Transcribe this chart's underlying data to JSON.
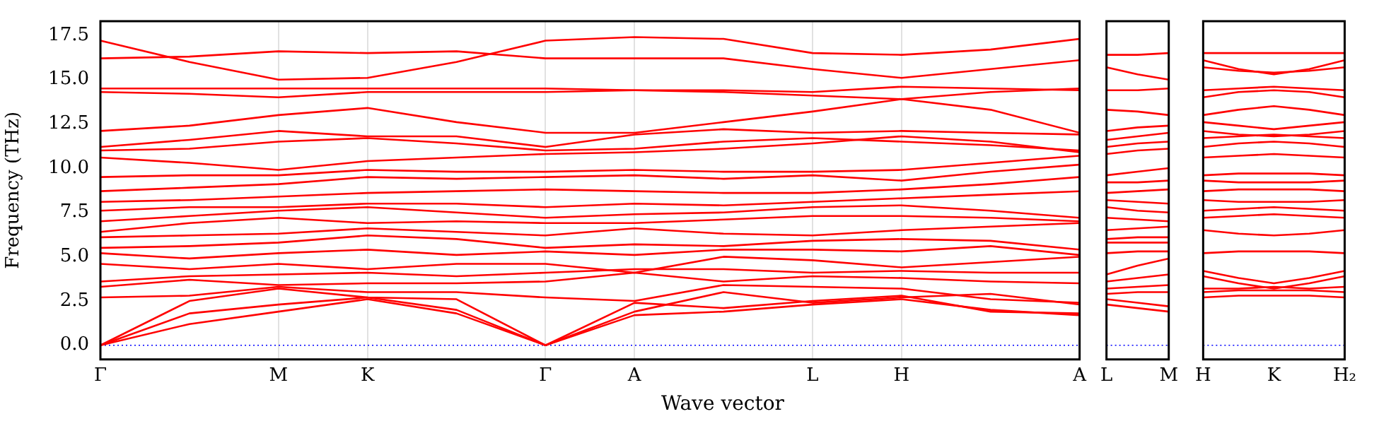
{
  "chart_data": [
    {
      "type": "line",
      "xlabel": "Wave vector",
      "ylabel": "Frequency (THz)",
      "grid": "x",
      "legend": false,
      "marker": "none",
      "line_style": "solid",
      "categories": [
        "Γ",
        null,
        "M",
        "K",
        null,
        "Γ",
        "A",
        null,
        "L",
        "H",
        null,
        "A"
      ],
      "ylim": [
        -0.8,
        18.3
      ],
      "yticks": [
        {
          "value": 0,
          "label": "0.0"
        },
        2.5,
        {
          "value": 5,
          "label": "5.0"
        },
        7.5,
        {
          "value": 10,
          "label": "10.0"
        },
        12.5,
        {
          "value": 15,
          "label": "15.0"
        },
        17.5
      ],
      "ref_lines": [
        {
          "axis": "y",
          "value": 0,
          "color": "#0000ff",
          "line_style": "dotted"
        }
      ],
      "series": [
        {
          "color": "#ff0000",
          "values": [
            0,
            1.2,
            1.9,
            2.6,
            1.8,
            0,
            1.7,
            1.9,
            2.3,
            2.6,
            2.0,
            1.7
          ]
        },
        {
          "color": "#ff0000",
          "values": [
            0,
            1.8,
            2.3,
            2.7,
            2.0,
            0,
            2.4,
            2.1,
            2.5,
            2.8,
            1.9,
            1.8
          ]
        },
        {
          "color": "#ff0000",
          "values": [
            0,
            2.5,
            3.2,
            2.7,
            2.6,
            0,
            1.9,
            3.0,
            2.4,
            2.7,
            2.9,
            2.3
          ]
        },
        {
          "color": "#ff0000",
          "values": [
            2.7,
            2.8,
            3.3,
            3.0,
            3.0,
            2.7,
            2.5,
            3.4,
            3.3,
            3.2,
            2.6,
            2.4
          ]
        },
        {
          "color": "#ff0000",
          "values": [
            3.3,
            3.7,
            3.4,
            3.5,
            3.5,
            3.6,
            4.1,
            3.6,
            3.9,
            3.8,
            3.6,
            3.5
          ]
        },
        {
          "color": "#ff0000",
          "values": [
            3.6,
            3.9,
            4.0,
            4.1,
            3.9,
            4.1,
            4.3,
            4.3,
            4.1,
            4.2,
            4.1,
            4.1
          ]
        },
        {
          "color": "#ff0000",
          "values": [
            4.6,
            4.3,
            4.6,
            4.3,
            4.6,
            4.6,
            4.1,
            5.0,
            4.8,
            4.4,
            4.7,
            5.0
          ]
        },
        {
          "color": "#ff0000",
          "values": [
            5.2,
            4.9,
            5.2,
            5.4,
            5.1,
            5.3,
            5.1,
            5.4,
            5.4,
            5.3,
            5.6,
            5.1
          ]
        },
        {
          "color": "#ff0000",
          "values": [
            5.5,
            5.6,
            5.8,
            6.2,
            6.0,
            5.5,
            5.7,
            5.6,
            5.9,
            6.0,
            5.9,
            5.4
          ]
        },
        {
          "color": "#ff0000",
          "values": [
            6.1,
            6.2,
            6.3,
            6.6,
            6.4,
            6.2,
            6.6,
            6.3,
            6.2,
            6.5,
            6.7,
            6.9
          ]
        },
        {
          "color": "#ff0000",
          "values": [
            6.4,
            6.9,
            7.2,
            6.9,
            7.0,
            6.9,
            6.9,
            7.1,
            7.3,
            7.3,
            7.2,
            7.0
          ]
        },
        {
          "color": "#ff0000",
          "values": [
            7.0,
            7.3,
            7.6,
            7.8,
            7.5,
            7.2,
            7.4,
            7.5,
            7.8,
            7.9,
            7.6,
            7.2
          ]
        },
        {
          "color": "#ff0000",
          "values": [
            7.6,
            7.8,
            7.8,
            8.0,
            8.0,
            7.8,
            8.0,
            7.9,
            8.1,
            8.3,
            8.5,
            8.7
          ]
        },
        {
          "color": "#ff0000",
          "values": [
            8.1,
            8.2,
            8.4,
            8.6,
            8.7,
            8.8,
            8.7,
            8.6,
            8.6,
            8.8,
            9.1,
            9.5
          ]
        },
        {
          "color": "#ff0000",
          "values": [
            8.7,
            8.9,
            9.1,
            9.5,
            9.4,
            9.5,
            9.6,
            9.4,
            9.6,
            9.3,
            9.8,
            10.2
          ]
        },
        {
          "color": "#ff0000",
          "values": [
            9.5,
            9.6,
            9.6,
            9.9,
            9.8,
            9.8,
            9.9,
            9.8,
            9.8,
            9.9,
            10.3,
            10.7
          ]
        },
        {
          "color": "#ff0000",
          "values": [
            10.6,
            10.3,
            9.9,
            10.4,
            10.6,
            10.8,
            10.9,
            11.1,
            11.4,
            11.8,
            11.5,
            10.9
          ]
        },
        {
          "color": "#ff0000",
          "values": [
            11.0,
            11.1,
            11.5,
            11.7,
            11.4,
            11.0,
            11.1,
            11.5,
            11.7,
            11.5,
            11.3,
            11.0
          ]
        },
        {
          "color": "#ff0000",
          "values": [
            11.2,
            11.6,
            12.1,
            11.8,
            11.8,
            11.2,
            11.9,
            12.2,
            12.0,
            12.1,
            12.0,
            11.9
          ]
        },
        {
          "color": "#ff0000",
          "values": [
            12.1,
            12.4,
            13.0,
            13.4,
            12.6,
            12.0,
            12.0,
            12.6,
            13.2,
            13.9,
            13.3,
            12.0
          ]
        },
        {
          "color": "#ff0000",
          "values": [
            14.3,
            14.2,
            14.0,
            14.3,
            14.3,
            14.3,
            14.4,
            14.4,
            14.3,
            14.6,
            14.5,
            14.4
          ]
        },
        {
          "color": "#ff0000",
          "values": [
            14.5,
            14.5,
            14.5,
            14.5,
            14.5,
            14.5,
            14.4,
            14.3,
            14.1,
            13.9,
            14.3,
            14.5
          ]
        },
        {
          "color": "#ff0000",
          "values": [
            16.2,
            16.3,
            16.6,
            16.5,
            16.6,
            16.2,
            16.2,
            16.2,
            15.6,
            15.1,
            15.6,
            16.1
          ]
        },
        {
          "color": "#ff0000",
          "values": [
            17.2,
            16.0,
            15.0,
            15.1,
            16.0,
            17.2,
            17.4,
            17.3,
            16.5,
            16.4,
            16.7,
            17.3
          ]
        }
      ]
    },
    {
      "type": "line",
      "legend": false,
      "marker": "none",
      "line_style": "solid",
      "tick_labels": "x",
      "categories": [
        "L",
        null,
        "M"
      ],
      "ylim": [
        -0.8,
        18.3
      ],
      "yticks": [
        {
          "value": 0,
          "label": null
        },
        {
          "value": 2.5,
          "label": null
        },
        {
          "value": 5,
          "label": null
        },
        {
          "value": 7.5,
          "label": null
        },
        {
          "value": 10,
          "label": null
        },
        {
          "value": 12.5,
          "label": null
        },
        {
          "value": 15,
          "label": null
        },
        {
          "value": 17.5,
          "label": null
        }
      ],
      "ref_lines": [
        {
          "axis": "y",
          "value": 0,
          "color": "#0000ff",
          "line_style": "dotted"
        }
      ],
      "series": [
        {
          "color": "#ff0000",
          "values": [
            2.3,
            2.1,
            1.9
          ]
        },
        {
          "color": "#ff0000",
          "values": [
            2.6,
            2.4,
            2.2
          ]
        },
        {
          "color": "#ff0000",
          "values": [
            2.9,
            3.0,
            3.0
          ]
        },
        {
          "color": "#ff0000",
          "values": [
            3.2,
            3.3,
            3.4
          ]
        },
        {
          "color": "#ff0000",
          "values": [
            3.6,
            3.8,
            4.0
          ]
        },
        {
          "color": "#ff0000",
          "values": [
            4.0,
            4.5,
            4.9
          ]
        },
        {
          "color": "#ff0000",
          "values": [
            5.2,
            5.3,
            5.3
          ]
        },
        {
          "color": "#ff0000",
          "values": [
            5.8,
            5.8,
            5.8
          ]
        },
        {
          "color": "#ff0000",
          "values": [
            6.0,
            6.1,
            6.1
          ]
        },
        {
          "color": "#ff0000",
          "values": [
            6.5,
            6.6,
            6.7
          ]
        },
        {
          "color": "#ff0000",
          "values": [
            7.2,
            7.1,
            7.0
          ]
        },
        {
          "color": "#ff0000",
          "values": [
            7.8,
            7.6,
            7.5
          ]
        },
        {
          "color": "#ff0000",
          "values": [
            8.2,
            8.1,
            8.0
          ]
        },
        {
          "color": "#ff0000",
          "values": [
            8.6,
            8.7,
            8.8
          ]
        },
        {
          "color": "#ff0000",
          "values": [
            9.2,
            9.2,
            9.3
          ]
        },
        {
          "color": "#ff0000",
          "values": [
            9.6,
            9.8,
            10.0
          ]
        },
        {
          "color": "#ff0000",
          "values": [
            10.8,
            11.0,
            11.1
          ]
        },
        {
          "color": "#ff0000",
          "values": [
            11.2,
            11.4,
            11.5
          ]
        },
        {
          "color": "#ff0000",
          "values": [
            11.6,
            11.8,
            12.0
          ]
        },
        {
          "color": "#ff0000",
          "values": [
            12.1,
            12.3,
            12.4
          ]
        },
        {
          "color": "#ff0000",
          "values": [
            13.3,
            13.2,
            13.0
          ]
        },
        {
          "color": "#ff0000",
          "values": [
            14.4,
            14.4,
            14.5
          ]
        },
        {
          "color": "#ff0000",
          "values": [
            15.7,
            15.3,
            15.0
          ]
        },
        {
          "color": "#ff0000",
          "values": [
            16.4,
            16.4,
            16.5
          ]
        }
      ]
    },
    {
      "type": "line",
      "legend": false,
      "marker": "none",
      "line_style": "solid",
      "tick_labels": "x",
      "categories": [
        "H",
        null,
        "K",
        null,
        "H₂"
      ],
      "ylim": [
        -0.8,
        18.3
      ],
      "yticks": [
        {
          "value": 0,
          "label": null
        },
        {
          "value": 2.5,
          "label": null
        },
        {
          "value": 5,
          "label": null
        },
        {
          "value": 7.5,
          "label": null
        },
        {
          "value": 10,
          "label": null
        },
        {
          "value": 12.5,
          "label": null
        },
        {
          "value": 15,
          "label": null
        },
        {
          "value": 17.5,
          "label": null
        }
      ],
      "ref_lines": [
        {
          "axis": "y",
          "value": 0,
          "color": "#0000ff",
          "line_style": "dotted"
        }
      ],
      "series": [
        {
          "color": "#ff0000",
          "values": [
            2.7,
            2.8,
            2.8,
            2.8,
            2.7
          ]
        },
        {
          "color": "#ff0000",
          "values": [
            3.0,
            3.1,
            3.1,
            3.1,
            3.0
          ]
        },
        {
          "color": "#ff0000",
          "values": [
            3.2,
            3.2,
            3.3,
            3.2,
            3.3
          ]
        },
        {
          "color": "#ff0000",
          "values": [
            3.9,
            3.5,
            3.2,
            3.5,
            3.9
          ]
        },
        {
          "color": "#ff0000",
          "values": [
            4.2,
            3.8,
            3.5,
            3.8,
            4.2
          ]
        },
        {
          "color": "#ff0000",
          "values": [
            5.2,
            5.3,
            5.3,
            5.3,
            5.2
          ]
        },
        {
          "color": "#ff0000",
          "values": [
            6.5,
            6.3,
            6.2,
            6.3,
            6.5
          ]
        },
        {
          "color": "#ff0000",
          "values": [
            7.2,
            7.3,
            7.4,
            7.3,
            7.2
          ]
        },
        {
          "color": "#ff0000",
          "values": [
            7.6,
            7.7,
            7.8,
            7.7,
            7.6
          ]
        },
        {
          "color": "#ff0000",
          "values": [
            8.2,
            8.1,
            8.1,
            8.1,
            8.2
          ]
        },
        {
          "color": "#ff0000",
          "values": [
            8.7,
            8.8,
            8.8,
            8.8,
            8.7
          ]
        },
        {
          "color": "#ff0000",
          "values": [
            9.3,
            9.2,
            9.2,
            9.2,
            9.3
          ]
        },
        {
          "color": "#ff0000",
          "values": [
            9.6,
            9.7,
            9.7,
            9.7,
            9.6
          ]
        },
        {
          "color": "#ff0000",
          "values": [
            10.6,
            10.7,
            10.8,
            10.7,
            10.6
          ]
        },
        {
          "color": "#ff0000",
          "values": [
            11.2,
            11.4,
            11.5,
            11.4,
            11.2
          ]
        },
        {
          "color": "#ff0000",
          "values": [
            11.7,
            11.8,
            11.9,
            11.8,
            11.7
          ]
        },
        {
          "color": "#ff0000",
          "values": [
            12.1,
            11.9,
            11.8,
            11.9,
            12.1
          ]
        },
        {
          "color": "#ff0000",
          "values": [
            12.6,
            12.4,
            12.2,
            12.4,
            12.6
          ]
        },
        {
          "color": "#ff0000",
          "values": [
            13.0,
            13.3,
            13.5,
            13.3,
            13.0
          ]
        },
        {
          "color": "#ff0000",
          "values": [
            14.0,
            14.3,
            14.4,
            14.3,
            14.0
          ]
        },
        {
          "color": "#ff0000",
          "values": [
            14.4,
            14.5,
            14.6,
            14.5,
            14.4
          ]
        },
        {
          "color": "#ff0000",
          "values": [
            15.7,
            15.5,
            15.4,
            15.5,
            15.7
          ]
        },
        {
          "color": "#ff0000",
          "values": [
            16.1,
            15.6,
            15.3,
            15.6,
            16.1
          ]
        },
        {
          "color": "#ff0000",
          "values": [
            16.5,
            16.5,
            16.5,
            16.5,
            16.5
          ]
        }
      ]
    }
  ]
}
